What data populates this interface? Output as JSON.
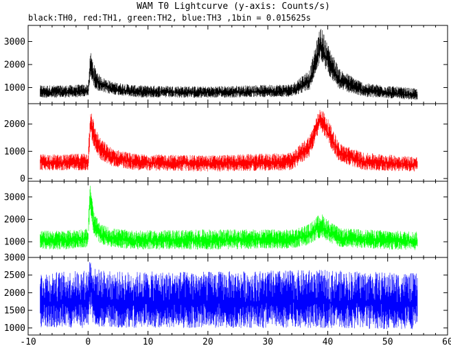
{
  "chart_data": {
    "type": "line",
    "title": "WAM T0 Lightcurve (y-axis: Counts/s)",
    "subtitle_parts": [
      {
        "text": "black:",
        "color": "#000000"
      },
      {
        "text": "TH0",
        "color": "#000000"
      },
      {
        "text": ", red:",
        "color": "#000000"
      },
      {
        "text": "TH1",
        "color": "#000000"
      },
      {
        "text": ", green:",
        "color": "#000000"
      },
      {
        "text": "TH2",
        "color": "#000000"
      },
      {
        "text": ", blue:",
        "color": "#000000"
      },
      {
        "text": "TH3",
        "color": "#000000"
      },
      {
        "text": " ,1bin = 0.015625s",
        "color": "#000000"
      }
    ],
    "xlim": [
      -10,
      60
    ],
    "x_ticks": [
      -10,
      0,
      10,
      20,
      30,
      40,
      50,
      60
    ],
    "x_tick_labels": [
      "-10",
      "0",
      "10",
      "20",
      "30",
      "40",
      "50",
      "60"
    ],
    "grid": false,
    "panels": [
      {
        "name": "TH0",
        "color": "#000000",
        "ylim": [
          300,
          3700
        ],
        "y_ticks": [
          1000,
          2000,
          3000
        ],
        "y_tick_labels": [
          "1000",
          "2000",
          "3000"
        ],
        "samples": [
          {
            "x": -8,
            "y": 800,
            "lo": 550,
            "hi": 1100
          },
          {
            "x": -4,
            "y": 800,
            "lo": 550,
            "hi": 1100
          },
          {
            "x": 0,
            "y": 850,
            "lo": 600,
            "hi": 1150
          },
          {
            "x": 0.4,
            "y": 1900,
            "lo": 1500,
            "hi": 2600
          },
          {
            "x": 1,
            "y": 1400,
            "lo": 1000,
            "hi": 2000
          },
          {
            "x": 2,
            "y": 1150,
            "lo": 800,
            "hi": 1500
          },
          {
            "x": 4,
            "y": 950,
            "lo": 700,
            "hi": 1250
          },
          {
            "x": 8,
            "y": 820,
            "lo": 570,
            "hi": 1100
          },
          {
            "x": 20,
            "y": 780,
            "lo": 550,
            "hi": 1050
          },
          {
            "x": 34,
            "y": 850,
            "lo": 600,
            "hi": 1150
          },
          {
            "x": 37,
            "y": 1300,
            "lo": 900,
            "hi": 1800
          },
          {
            "x": 38.8,
            "y": 2800,
            "lo": 2200,
            "hi": 3700
          },
          {
            "x": 40,
            "y": 2200,
            "lo": 1600,
            "hi": 2900
          },
          {
            "x": 42,
            "y": 1300,
            "lo": 900,
            "hi": 1800
          },
          {
            "x": 46,
            "y": 850,
            "lo": 600,
            "hi": 1200
          },
          {
            "x": 55,
            "y": 650,
            "lo": 450,
            "hi": 950
          }
        ]
      },
      {
        "name": "TH1",
        "color": "#ff0000",
        "ylim": [
          -100,
          2750
        ],
        "y_ticks": [
          0,
          1000,
          2000
        ],
        "y_tick_labels": [
          "0",
          "1000",
          "2000"
        ],
        "samples": [
          {
            "x": -8,
            "y": 600,
            "lo": 300,
            "hi": 900
          },
          {
            "x": -4,
            "y": 580,
            "lo": 300,
            "hi": 880
          },
          {
            "x": 0,
            "y": 600,
            "lo": 300,
            "hi": 950
          },
          {
            "x": 0.4,
            "y": 2100,
            "lo": 1600,
            "hi": 2750
          },
          {
            "x": 1,
            "y": 1500,
            "lo": 1100,
            "hi": 2000
          },
          {
            "x": 2,
            "y": 1050,
            "lo": 700,
            "hi": 1500
          },
          {
            "x": 4,
            "y": 750,
            "lo": 450,
            "hi": 1100
          },
          {
            "x": 8,
            "y": 600,
            "lo": 300,
            "hi": 900
          },
          {
            "x": 20,
            "y": 550,
            "lo": 250,
            "hi": 850
          },
          {
            "x": 34,
            "y": 600,
            "lo": 300,
            "hi": 950
          },
          {
            "x": 37,
            "y": 1200,
            "lo": 800,
            "hi": 1600
          },
          {
            "x": 38.8,
            "y": 2200,
            "lo": 1800,
            "hi": 2650
          },
          {
            "x": 40,
            "y": 1700,
            "lo": 1300,
            "hi": 2200
          },
          {
            "x": 42,
            "y": 900,
            "lo": 600,
            "hi": 1300
          },
          {
            "x": 46,
            "y": 600,
            "lo": 300,
            "hi": 950
          },
          {
            "x": 55,
            "y": 500,
            "lo": 250,
            "hi": 800
          }
        ]
      },
      {
        "name": "TH2",
        "color": "#00ff00",
        "ylim": [
          300,
          3700
        ],
        "y_ticks": [
          1000,
          2000,
          3000
        ],
        "y_tick_labels": [
          "1000",
          "2000",
          "3000"
        ],
        "samples": [
          {
            "x": -8,
            "y": 1050,
            "lo": 650,
            "hi": 1500
          },
          {
            "x": -4,
            "y": 1050,
            "lo": 650,
            "hi": 1500
          },
          {
            "x": 0,
            "y": 1150,
            "lo": 750,
            "hi": 1600
          },
          {
            "x": 0.3,
            "y": 3000,
            "lo": 2300,
            "hi": 3650
          },
          {
            "x": 1,
            "y": 1700,
            "lo": 1200,
            "hi": 2300
          },
          {
            "x": 2,
            "y": 1300,
            "lo": 900,
            "hi": 1800
          },
          {
            "x": 4,
            "y": 1150,
            "lo": 750,
            "hi": 1600
          },
          {
            "x": 8,
            "y": 1050,
            "lo": 650,
            "hi": 1500
          },
          {
            "x": 20,
            "y": 1050,
            "lo": 650,
            "hi": 1550
          },
          {
            "x": 34,
            "y": 1100,
            "lo": 700,
            "hi": 1550
          },
          {
            "x": 37,
            "y": 1300,
            "lo": 850,
            "hi": 1800
          },
          {
            "x": 38.8,
            "y": 1700,
            "lo": 1200,
            "hi": 2300
          },
          {
            "x": 40,
            "y": 1450,
            "lo": 1000,
            "hi": 2000
          },
          {
            "x": 42,
            "y": 1150,
            "lo": 750,
            "hi": 1600
          },
          {
            "x": 55,
            "y": 1000,
            "lo": 600,
            "hi": 1450
          }
        ]
      },
      {
        "name": "TH3",
        "color": "#0000ff",
        "ylim": [
          800,
          3000
        ],
        "y_ticks": [
          1000,
          1500,
          2000,
          2500,
          3000
        ],
        "y_tick_labels": [
          "1000",
          "1500",
          "2000",
          "2500",
          "3000"
        ],
        "samples": [
          {
            "x": -8,
            "y": 1700,
            "lo": 1000,
            "hi": 2600
          },
          {
            "x": -4,
            "y": 1700,
            "lo": 1000,
            "hi": 2600
          },
          {
            "x": 0,
            "y": 1750,
            "lo": 1000,
            "hi": 2650
          },
          {
            "x": 0.3,
            "y": 2300,
            "lo": 1300,
            "hi": 3000
          },
          {
            "x": 1,
            "y": 1800,
            "lo": 1050,
            "hi": 2700
          },
          {
            "x": 4,
            "y": 1700,
            "lo": 1000,
            "hi": 2600
          },
          {
            "x": 20,
            "y": 1700,
            "lo": 1000,
            "hi": 2600
          },
          {
            "x": 38.8,
            "y": 1750,
            "lo": 1000,
            "hi": 2650
          },
          {
            "x": 55,
            "y": 1650,
            "lo": 950,
            "hi": 2550
          }
        ]
      }
    ],
    "data_x_range": [
      -8,
      55
    ]
  }
}
